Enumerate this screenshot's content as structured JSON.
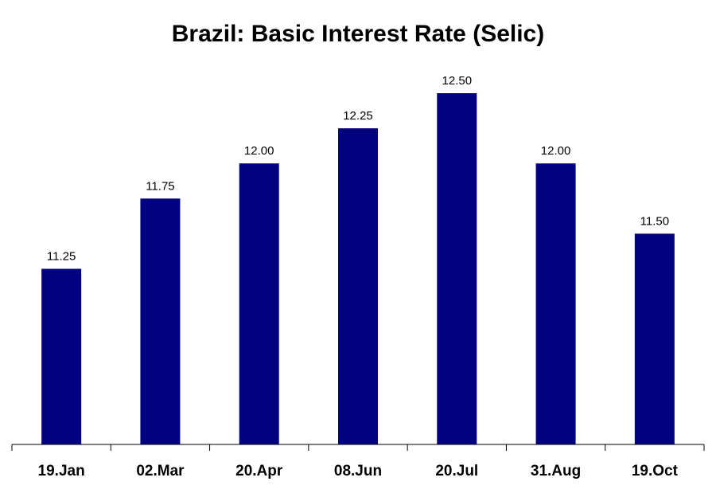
{
  "chart_data": {
    "type": "bar",
    "title": "Brazil: Basic Interest Rate (Selic)",
    "categories": [
      "19.Jan",
      "02.Mar",
      "20.Apr",
      "08.Jun",
      "20.Jul",
      "31.Aug",
      "19.Oct"
    ],
    "values": [
      11.25,
      11.75,
      12.0,
      12.25,
      12.5,
      12.0,
      11.5
    ],
    "value_labels": [
      "11.25",
      "11.75",
      "12.00",
      "12.25",
      "12.50",
      "12.00",
      "11.50"
    ],
    "xlabel": "",
    "ylabel": "",
    "ylim": [
      10.0,
      12.5
    ],
    "grid": false,
    "legend": "none",
    "bar_color": "#000080"
  }
}
